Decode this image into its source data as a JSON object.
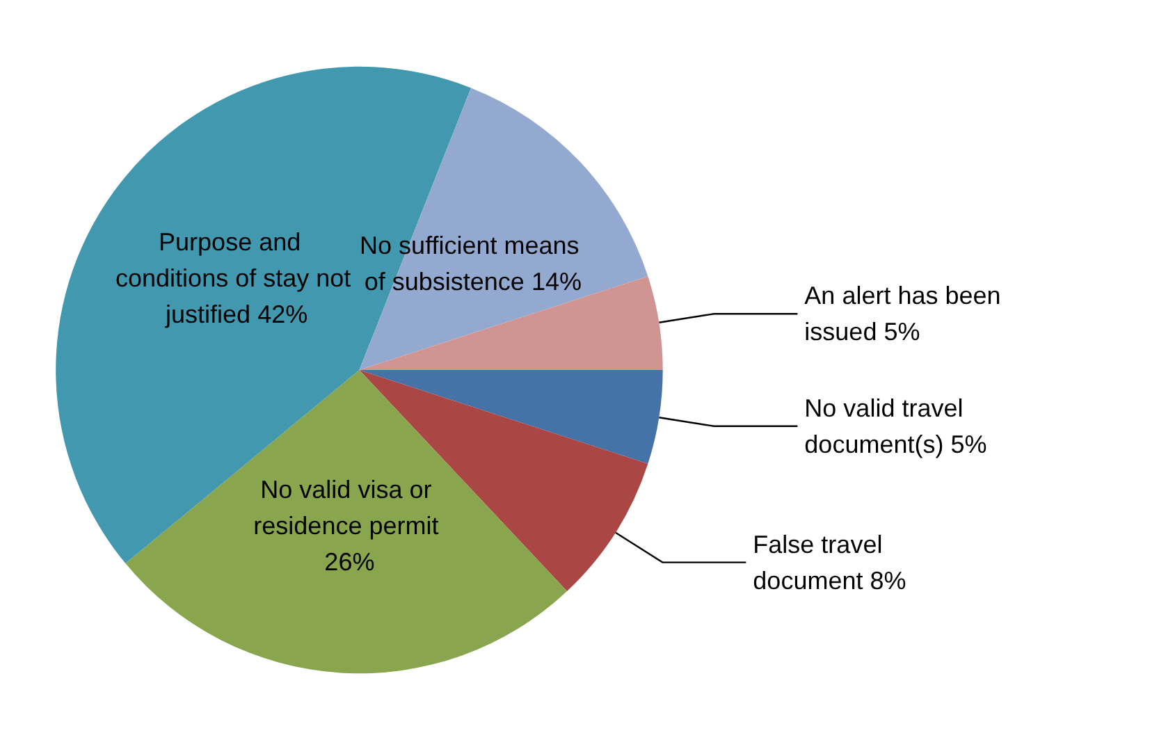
{
  "chart_data": {
    "type": "pie",
    "categories": [
      "No valid travel document(s)",
      "False travel document",
      "No valid visa or residence permit",
      "Purpose and conditions of stay not justified",
      "No sufficient means of subsistence",
      "An alert has been issued"
    ],
    "values": [
      5,
      8,
      26,
      42,
      14,
      5
    ],
    "value_labels": [
      "5%",
      "8%",
      "26%",
      "42%",
      "14%",
      "5%"
    ],
    "colors": [
      "#4572a7",
      "#aa4643",
      "#89a54e",
      "#4198af",
      "#93a9cf",
      "#d09493"
    ],
    "legend": false
  }
}
